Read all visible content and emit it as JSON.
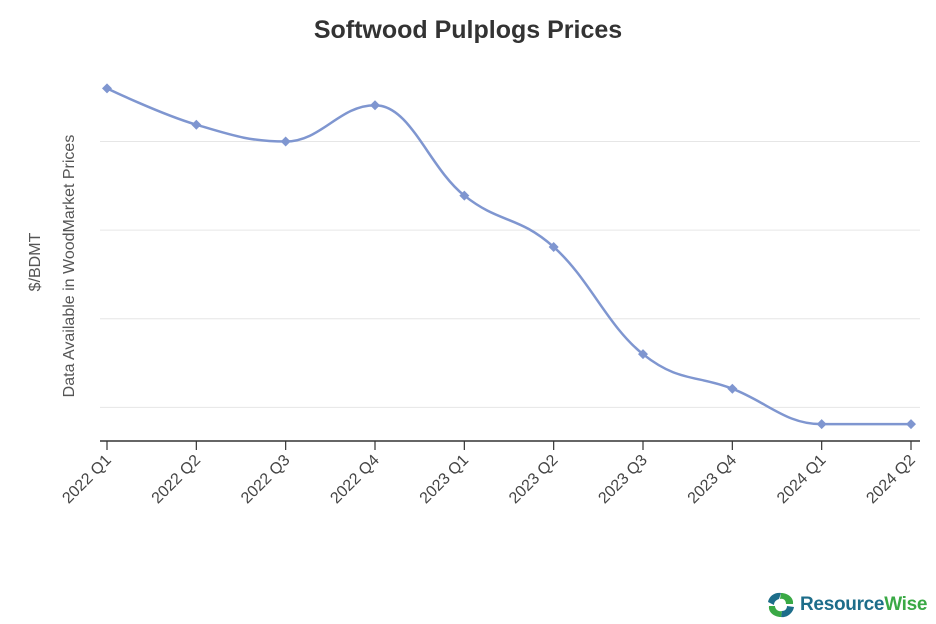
{
  "chart_data": {
    "type": "line",
    "title": "Softwood Pulplogs Prices",
    "ylabel": [
      "$/BDMT",
      "Data Available in WoodMarket Prices"
    ],
    "xlabel": "",
    "categories": [
      "2022 Q1",
      "2022 Q2",
      "2022 Q3",
      "2022 Q4",
      "2023 Q1",
      "2023 Q2",
      "2023 Q3",
      "2023 Q4",
      "2024 Q1",
      "2024 Q2"
    ],
    "series": [
      {
        "values": [
          4.6,
          4.19,
          4.0,
          4.41,
          3.39,
          2.81,
          1.6,
          1.21,
          0.81,
          0.81
        ],
        "color": "#7f96d0"
      }
    ],
    "ylim": [
      0.62,
      5.2
    ],
    "gridlines": [
      1,
      2,
      3,
      4
    ],
    "grid": true,
    "smooth": true,
    "marker": "diamond",
    "ytick_labels_shown": false
  },
  "logo": {
    "part1": "Resource",
    "part2": "Wise"
  },
  "colors": {
    "line": "#7f96d0",
    "grid": "#e6e6e6",
    "axis": "#333333",
    "logo_blue": "#1d6d8a",
    "logo_green": "#3aa945"
  }
}
